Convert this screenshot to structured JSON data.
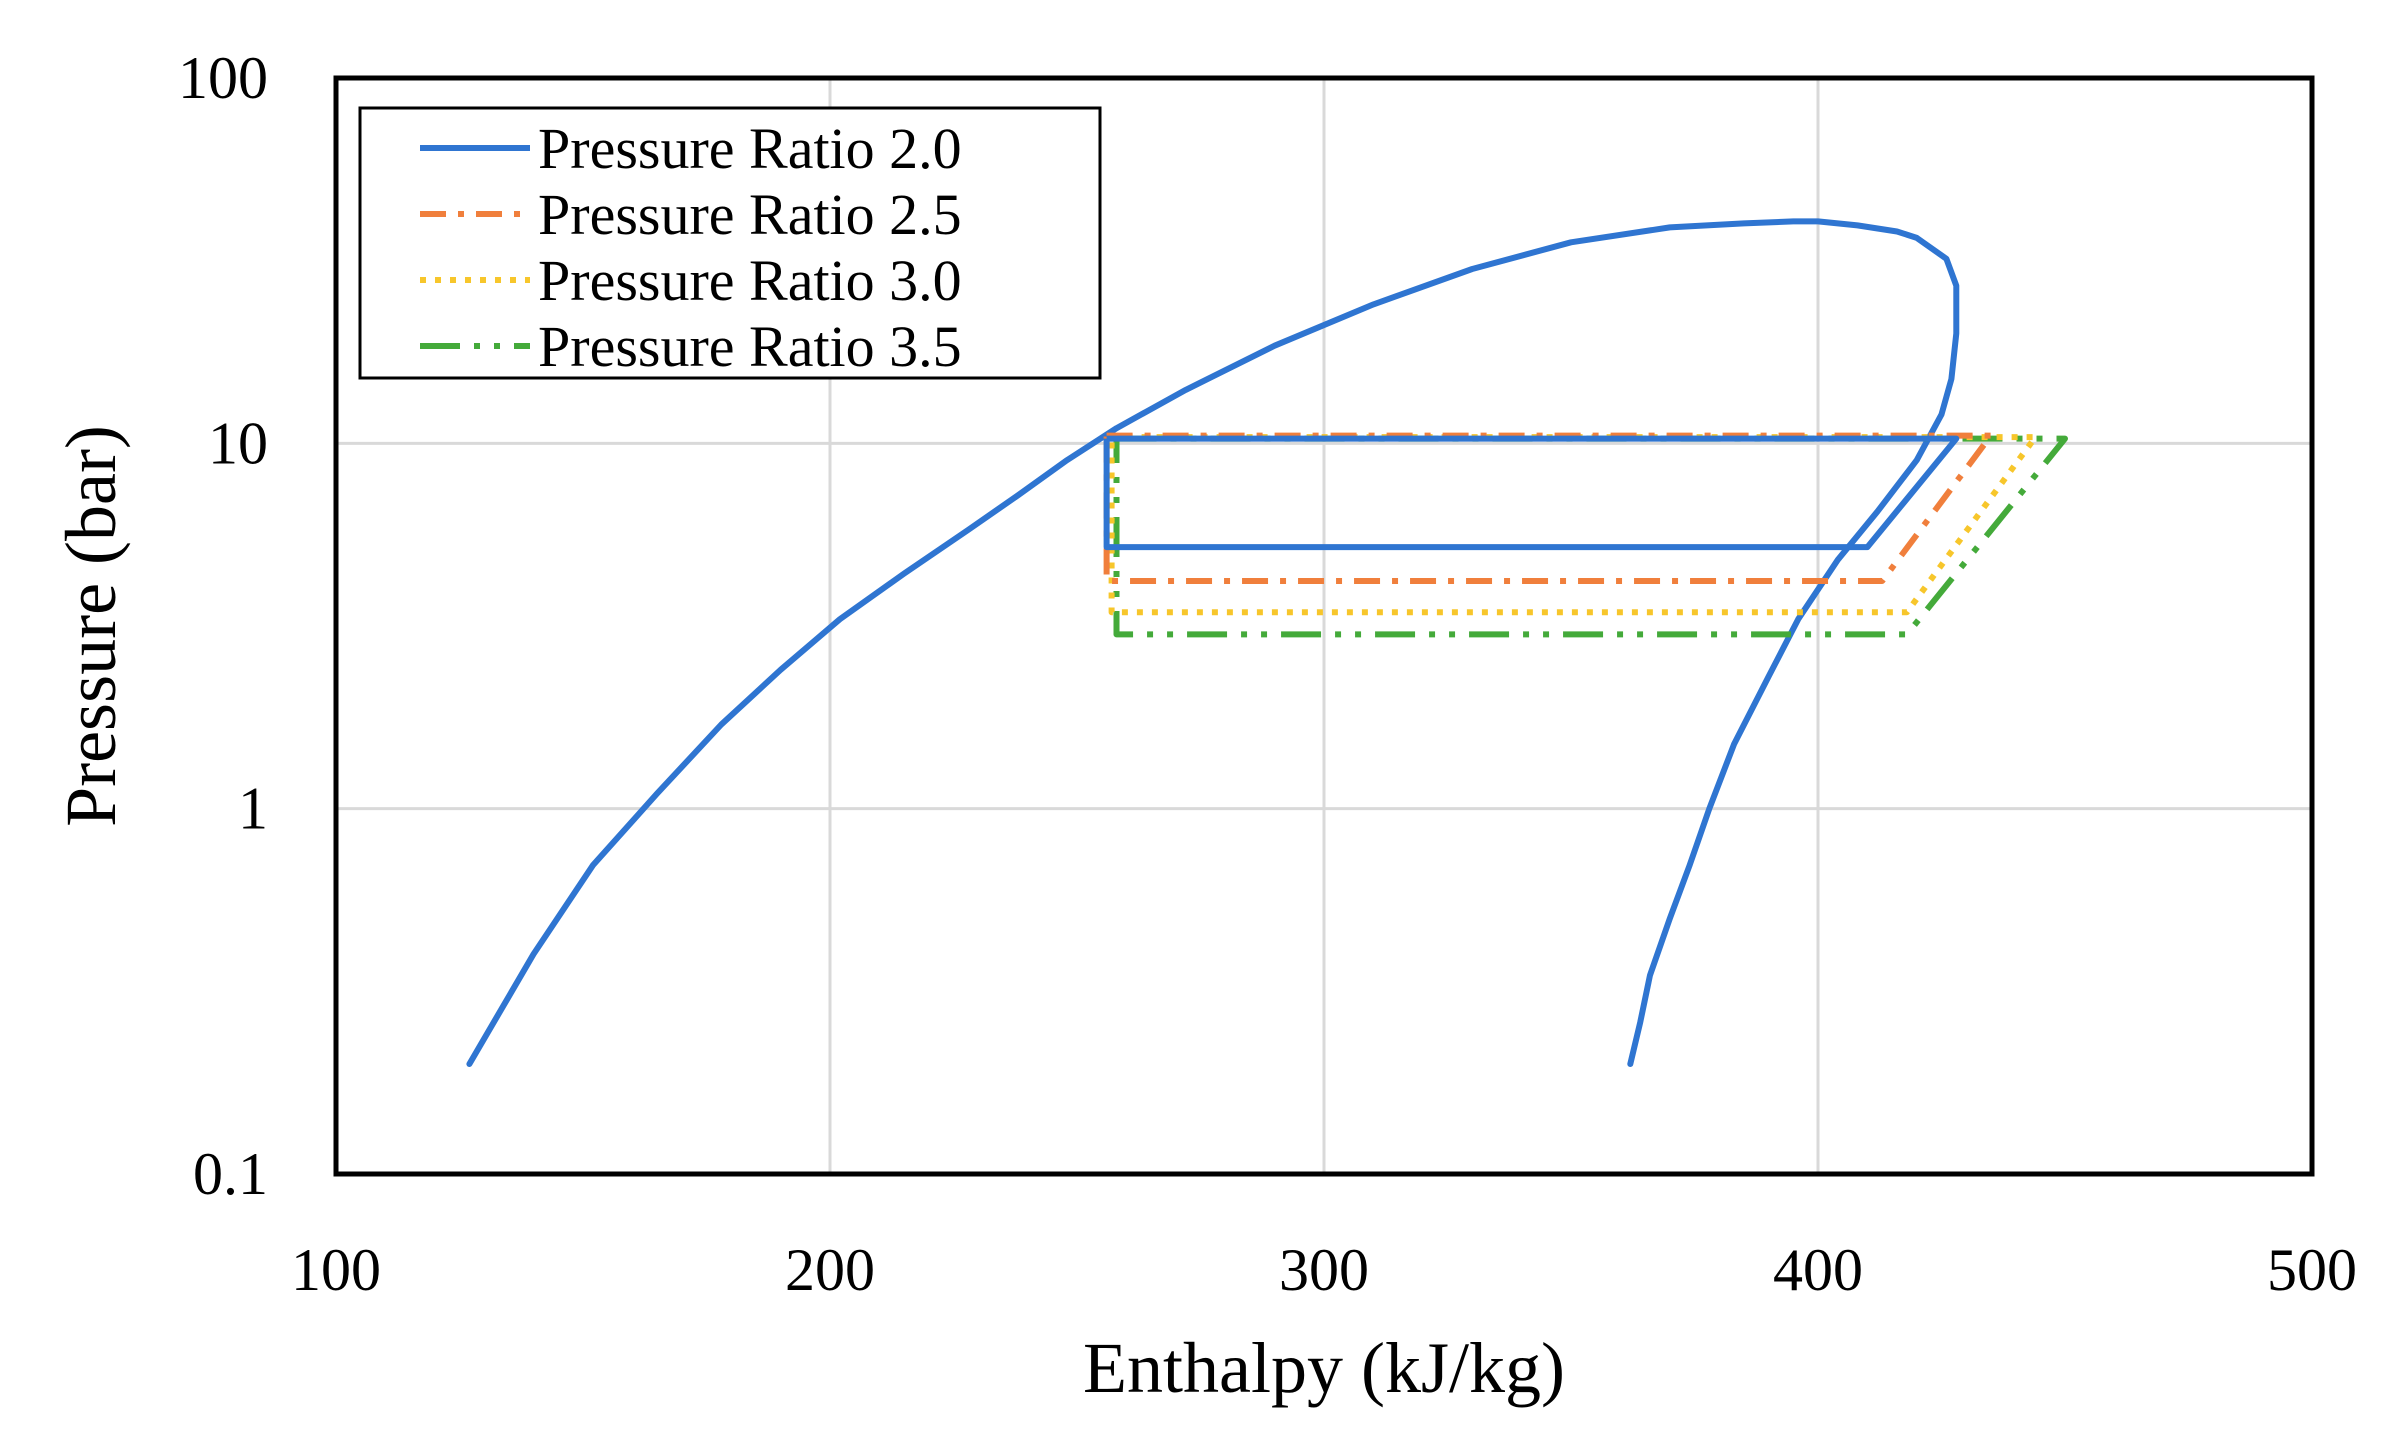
{
  "chart_data": {
    "type": "line",
    "title": "",
    "xlabel": "Enthalpy (kJ/kg)",
    "ylabel": "Pressure (bar)",
    "xlim": [
      100,
      500
    ],
    "ylim": [
      0.1,
      100
    ],
    "yscale": "log",
    "grid": true,
    "xticks": [
      {
        "value": 100,
        "label": "100"
      },
      {
        "value": 200,
        "label": "200"
      },
      {
        "value": 300,
        "label": "300"
      },
      {
        "value": 400,
        "label": "400"
      },
      {
        "value": 500,
        "label": "500"
      }
    ],
    "yticks": [
      {
        "value": 0.1,
        "label": "0.1"
      },
      {
        "value": 1,
        "label": "1"
      },
      {
        "value": 10,
        "label": "10"
      },
      {
        "value": 100,
        "label": "100"
      }
    ],
    "legend_position": "top-left",
    "saturation_dome": {
      "x": [
        127,
        140,
        152,
        165,
        178,
        190,
        202,
        215,
        228,
        238,
        248,
        258,
        272,
        290,
        310,
        330,
        350,
        370,
        385,
        395,
        400,
        408,
        416,
        420,
        426,
        428,
        428,
        427,
        425,
        420,
        412,
        404,
        396,
        390,
        383,
        378,
        374,
        370,
        366,
        364,
        362
      ],
      "y": [
        0.2,
        0.4,
        0.7,
        1.1,
        1.7,
        2.4,
        3.3,
        4.4,
        5.8,
        7.2,
        9.0,
        11.0,
        14.0,
        18.5,
        24.0,
        30.0,
        35.5,
        39.0,
        40.0,
        40.5,
        40.5,
        39.5,
        38.0,
        36.5,
        32.0,
        27.0,
        20.0,
        15.0,
        12.0,
        9.0,
        6.5,
        4.8,
        3.3,
        2.3,
        1.5,
        1.0,
        0.7,
        0.5,
        0.35,
        0.26,
        0.2
      ]
    },
    "series": [
      {
        "name": "Pressure Ratio 2.0",
        "color": "#2F75D1",
        "x": [
          256,
          428,
          410,
          256,
          256
        ],
        "y": [
          10.3,
          10.3,
          5.2,
          5.2,
          10.3
        ]
      },
      {
        "name": "Pressure Ratio 2.5",
        "color": "#F07F3C",
        "x": [
          256,
          435,
          413,
          256,
          256
        ],
        "y": [
          10.5,
          10.5,
          4.2,
          4.2,
          10.5
        ]
      },
      {
        "name": "Pressure Ratio 3.0",
        "color": "#F7C62B",
        "x": [
          257,
          444,
          418,
          257,
          257
        ],
        "y": [
          10.4,
          10.4,
          3.45,
          3.45,
          10.4
        ]
      },
      {
        "name": "Pressure Ratio 3.5",
        "color": "#44AA3A",
        "x": [
          258,
          450,
          418,
          258,
          258
        ],
        "y": [
          10.3,
          10.3,
          3.0,
          3.0,
          10.3
        ]
      }
    ]
  }
}
